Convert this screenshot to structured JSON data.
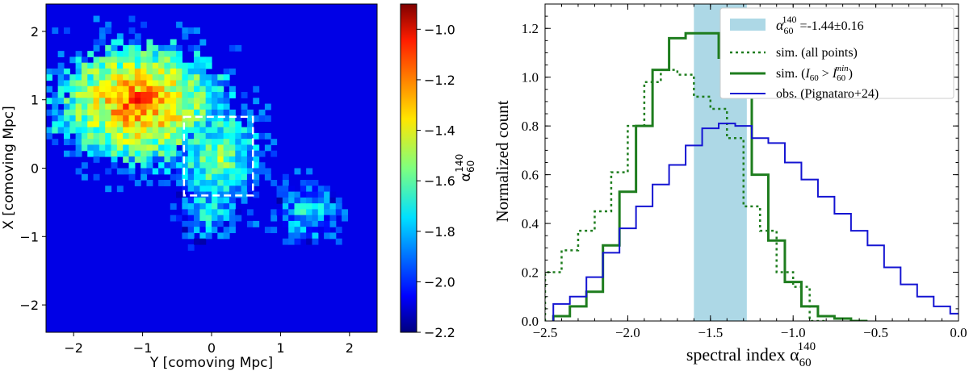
{
  "chart_data": [
    {
      "type": "heatmap",
      "xlabel": "Y [comoving Mpc]",
      "ylabel": "X [comoving Mpc]",
      "xlim": [
        -2.4,
        2.4
      ],
      "ylim": [
        -2.4,
        2.4
      ],
      "x_ticks": [
        "−2",
        "−1",
        "0",
        "1",
        "2"
      ],
      "y_ticks": [
        "−2",
        "−1",
        "0",
        "1",
        "2"
      ],
      "background_value": -2.2,
      "colormap": "jet",
      "colorbar": {
        "label_base": "α",
        "label_sub": "60",
        "label_sup": "140",
        "range": [
          -2.2,
          -0.9
        ],
        "ticks": [
          "−2.2",
          "−2.0",
          "−1.8",
          "−1.6",
          "−1.4",
          "−1.2",
          "−1.0"
        ]
      },
      "regions": [
        {
          "name": "upper-left lobe",
          "cx": -1.05,
          "cy": 0.95,
          "rx": 1.3,
          "ry": 0.95,
          "core": -1.15,
          "edge": -1.85
        },
        {
          "name": "central region",
          "cx": 0.1,
          "cy": 0.15,
          "rx": 0.65,
          "ry": 0.85,
          "core": -1.55,
          "edge": -1.95
        },
        {
          "name": "lower tail",
          "cx": -0.05,
          "cy": -0.6,
          "rx": 0.45,
          "ry": 0.5,
          "core": -1.75,
          "edge": -2.05
        },
        {
          "name": "right patch",
          "cx": 1.4,
          "cy": -0.65,
          "rx": 0.45,
          "ry": 0.45,
          "core": -1.75,
          "edge": -2.05
        }
      ],
      "selection_box": {
        "x0": -0.4,
        "x1": 0.6,
        "y0": -0.4,
        "y1": 0.75,
        "style": "white dashed"
      }
    },
    {
      "type": "line",
      "xlabel_base": "spectral index α",
      "xlabel_sub": "60",
      "xlabel_sup": "140",
      "ylabel": "Normalized count",
      "xlim": [
        -2.5,
        0.0
      ],
      "ylim": [
        0.0,
        1.3
      ],
      "x_ticks": [
        "−2.5",
        "−2.0",
        "−1.5",
        "−1.0",
        "−0.5",
        "0.0"
      ],
      "y_ticks": [
        "0.0",
        "0.2",
        "0.4",
        "0.6",
        "0.8",
        "1.0",
        "1.2"
      ],
      "bin_width": 0.1,
      "shaded_band": {
        "x0": -1.6,
        "x1": -1.28,
        "color": "#add8e6"
      },
      "legend_position": "top-right",
      "legend": {
        "band": {
          "base": "α",
          "sub": "60",
          "sup": "140",
          "text": " =-1.44±0.16"
        },
        "all": {
          "text": "sim. (all points)"
        },
        "cut": {
          "prefix": "sim. (",
          "i": "I",
          "i_sub": "60",
          "gt": " > ",
          "i2": "I",
          "i2_sub": "60",
          "i2_sup": "min",
          "suffix": ")"
        },
        "obs": {
          "text": "obs. (Pignataro+24)"
        }
      },
      "series": [
        {
          "name": "sim. (all points)",
          "color": "#1e7d1e",
          "style": "dotted",
          "bin_left_edges": [
            -2.5,
            -2.4,
            -2.3,
            -2.2,
            -2.1,
            -2.0,
            -1.9,
            -1.8,
            -1.7,
            -1.6,
            -1.5,
            -1.4,
            -1.3,
            -1.2,
            -1.1,
            -1.0,
            -0.9
          ],
          "values": [
            0.2,
            0.29,
            0.37,
            0.45,
            0.61,
            0.8,
            0.98,
            1.03,
            1.01,
            0.92,
            0.87,
            0.75,
            0.47,
            0.37,
            0.2,
            0.14,
            0.0
          ]
        },
        {
          "name": "sim. (I60 > I60min)",
          "color": "#1e7d1e",
          "style": "solid-thick",
          "bin_left_edges": [
            -2.45,
            -2.35,
            -2.25,
            -2.15,
            -2.05,
            -1.95,
            -1.85,
            -1.75,
            -1.65,
            -1.55,
            -1.45,
            -1.35,
            -1.25,
            -1.15,
            -1.05,
            -0.95,
            -0.85,
            -0.75,
            -0.65
          ],
          "values": [
            0.02,
            0.06,
            0.12,
            0.31,
            0.53,
            0.8,
            1.03,
            1.16,
            1.18,
            1.18,
            1.08,
            0.94,
            0.6,
            0.33,
            0.16,
            0.06,
            0.02,
            0.01,
            0.0
          ]
        },
        {
          "name": "obs. (Pignataro+24)",
          "color": "#1414d2",
          "style": "solid",
          "bin_left_edges": [
            -2.45,
            -2.35,
            -2.25,
            -2.15,
            -2.05,
            -1.95,
            -1.85,
            -1.75,
            -1.65,
            -1.55,
            -1.45,
            -1.35,
            -1.25,
            -1.15,
            -1.05,
            -0.95,
            -0.85,
            -0.75,
            -0.65,
            -0.55,
            -0.45,
            -0.35,
            -0.25,
            -0.15,
            -0.05
          ],
          "values": [
            0.07,
            0.1,
            0.18,
            0.28,
            0.38,
            0.47,
            0.56,
            0.64,
            0.72,
            0.79,
            0.81,
            0.8,
            0.75,
            0.73,
            0.65,
            0.58,
            0.51,
            0.44,
            0.37,
            0.31,
            0.22,
            0.15,
            0.1,
            0.06,
            0.03
          ]
        }
      ]
    }
  ]
}
